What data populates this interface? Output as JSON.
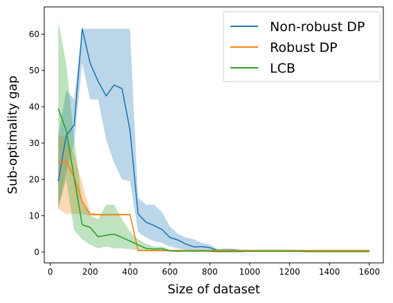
{
  "chart_data": {
    "type": "line",
    "xlabel": "Size of dataset",
    "ylabel": "Sub-optimality gap",
    "xlim": [
      -30,
      1670
    ],
    "ylim": [
      -3,
      67.5
    ],
    "xticks": [
      0,
      200,
      400,
      600,
      800,
      1000,
      1200,
      1400,
      1600
    ],
    "yticks": [
      0,
      10,
      20,
      30,
      40,
      50,
      60
    ],
    "grid": false,
    "legend_position": "top-right",
    "series": [
      {
        "name": "Non-robust DP",
        "color": "#1f77b4",
        "x": [
          40,
          80,
          120,
          160,
          200,
          240,
          280,
          320,
          360,
          400,
          440,
          480,
          520,
          560,
          600,
          640,
          680,
          720,
          760,
          800,
          840,
          880,
          920,
          960,
          1000,
          1100,
          1200,
          1300,
          1400,
          1500,
          1600
        ],
        "y": [
          19.5,
          32,
          35,
          61.5,
          52,
          47,
          43,
          46,
          45,
          33.5,
          10.5,
          8.2,
          7.3,
          6.2,
          4,
          3.3,
          2.2,
          1.4,
          1.5,
          1.2,
          0.4,
          0.4,
          0.5,
          0.3,
          0.3,
          0.3,
          0.3,
          0.3,
          0.3,
          0.3,
          0.3
        ],
        "band_upper": [
          32,
          44.5,
          42,
          61.5,
          61.5,
          61.5,
          61.5,
          61.5,
          61.5,
          61.5,
          15,
          13,
          13,
          11,
          7,
          5,
          4,
          3.5,
          2.5,
          2,
          0.8,
          1,
          0.9,
          0.7,
          0.6,
          0.6,
          0.6,
          0.6,
          0.6,
          0.6,
          0.6
        ],
        "band_lower": [
          12,
          22,
          30,
          52,
          42,
          42,
          31,
          24.5,
          20,
          19.5,
          5.5,
          4,
          3,
          2.5,
          1.5,
          1,
          0.6,
          0.4,
          0.4,
          0.2,
          0.1,
          0.1,
          0.1,
          0.1,
          0.1,
          0.1,
          0.1,
          0.1,
          0.1,
          0.1,
          0.1
        ]
      },
      {
        "name": "Robust DP",
        "color": "#ff7f0e",
        "x": [
          40,
          80,
          120,
          160,
          200,
          240,
          280,
          320,
          360,
          400,
          440,
          480,
          520,
          560,
          600,
          800,
          1000,
          1200,
          1400,
          1600
        ],
        "y": [
          24.5,
          25,
          20.5,
          14,
          10.3,
          10.3,
          10.3,
          10.3,
          10.3,
          10.3,
          0.4,
          0.4,
          0.4,
          0.4,
          0.4,
          0.4,
          0.4,
          0.4,
          0.4,
          0.4
        ],
        "band_upper": [
          32,
          31.5,
          27,
          19,
          11,
          10.5,
          10.5,
          10.5,
          10.5,
          10.5,
          0.6,
          0.6,
          0.6,
          0.6,
          0.6,
          0.6,
          0.6,
          0.6,
          0.6,
          0.6
        ],
        "band_lower": [
          12,
          10.5,
          10.5,
          10.5,
          10,
          10,
          10,
          10,
          10,
          10,
          0.2,
          0.2,
          0.2,
          0.2,
          0.2,
          0.2,
          0.2,
          0.2,
          0.2,
          0.2
        ]
      },
      {
        "name": "LCB",
        "color": "#2ca02c",
        "x": [
          40,
          80,
          120,
          160,
          200,
          240,
          280,
          320,
          360,
          400,
          440,
          480,
          520,
          560,
          600,
          640,
          680,
          720,
          760,
          800,
          840,
          880,
          920,
          960,
          1000,
          1100,
          1200,
          1300,
          1400,
          1500,
          1600
        ],
        "y": [
          39.5,
          33.5,
          20.5,
          7.5,
          6.8,
          4.2,
          4.6,
          4.9,
          4,
          3,
          2,
          1,
          0.8,
          0.9,
          0.3,
          0.2,
          0.3,
          0.2,
          0.3,
          0.2,
          0.1,
          0.1,
          0.1,
          0.1,
          0.2,
          0.2,
          0.2,
          0.1,
          0.1,
          0.1,
          0.1
        ],
        "band_upper": [
          63.5,
          52,
          31,
          14,
          10,
          9,
          13,
          13,
          9,
          5.5,
          3.5,
          2.3,
          1.5,
          1.5,
          0.6,
          0.5,
          0.5,
          0.5,
          0.5,
          0.5,
          0.8,
          0.8,
          0.8,
          0.5,
          0.5,
          0.5,
          0.5,
          0.3,
          0.3,
          0.3,
          0.3
        ],
        "band_lower": [
          12,
          20,
          6,
          3.5,
          2,
          1,
          1.5,
          1,
          1,
          0.8,
          0.5,
          0.2,
          0.2,
          0.2,
          0.1,
          0.1,
          0.1,
          0.1,
          0.1,
          0.1,
          0.1,
          0.1,
          0.1,
          0.1,
          0.1,
          0.1,
          0.1,
          0.1,
          0.1,
          0.1,
          0.1
        ]
      }
    ]
  }
}
